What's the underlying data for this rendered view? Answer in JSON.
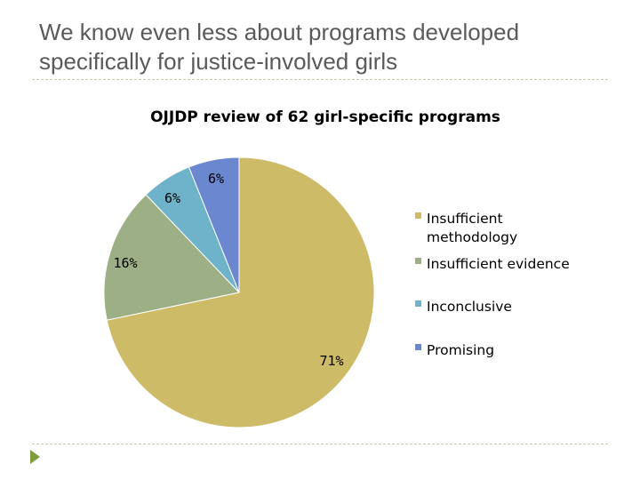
{
  "slide": {
    "heading_line1": "We know even less about programs developed",
    "heading_line2": "specifically for justice-involved girls"
  },
  "chart_data": {
    "type": "pie",
    "title": "OJJDP review of 62 girl-specific programs",
    "categories": [
      "Insufficient methodology",
      "Insufficient evidence",
      "Inconclusive",
      "Promising"
    ],
    "values": [
      71,
      16,
      6,
      6
    ],
    "data_labels": [
      "71%",
      "16%",
      "6%",
      "6%"
    ],
    "colors": [
      "#cdbb68",
      "#9daf84",
      "#6fb3ca",
      "#6b87cf"
    ],
    "legend_position": "right",
    "start_angle_deg": 0,
    "direction": "clockwise"
  }
}
